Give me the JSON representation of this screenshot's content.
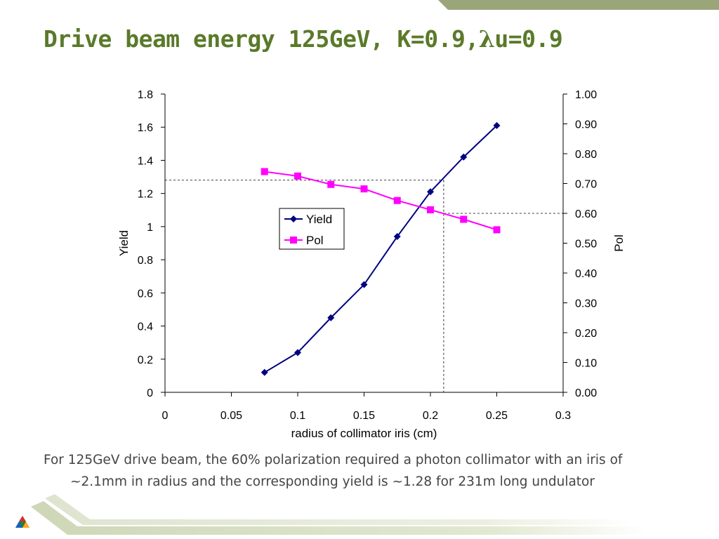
{
  "slide": {
    "title_prefix": "Drive beam energy 125GeV, K=0.9,",
    "title_lambda": "λ",
    "title_suffix": "u=0.9",
    "caption": "For 125GeV drive beam, the 60% polarization required a photon collimator with an iris of ~2.1mm in radius and the corresponding yield is ~1.28 for 231m long undulator",
    "accent_color": "#5a7a2a",
    "band_color": "#9aa67a"
  },
  "chart_data": {
    "type": "line",
    "title": "",
    "xlabel": "radius of collimator iris (cm)",
    "ylabel": "Yield",
    "y2label": "Pol",
    "xlim": [
      0,
      0.3
    ],
    "ylim": [
      0,
      1.8
    ],
    "y2lim": [
      0,
      1.0
    ],
    "x_ticks": [
      "0",
      "0.05",
      "0.1",
      "0.15",
      "0.2",
      "0.25",
      "0.3"
    ],
    "y_ticks": [
      "0",
      "0.2",
      "0.4",
      "0.6",
      "0.8",
      "1",
      "1.2",
      "1.4",
      "1.6",
      "1.8"
    ],
    "y2_ticks": [
      "0.00",
      "0.10",
      "0.20",
      "0.30",
      "0.40",
      "0.50",
      "0.60",
      "0.70",
      "0.80",
      "0.90",
      "1.00"
    ],
    "grid": false,
    "legend_position": "center",
    "series": [
      {
        "name": "Yield",
        "axis": "left",
        "color": "#000080",
        "marker": "diamond",
        "x": [
          0.075,
          0.1,
          0.125,
          0.15,
          0.175,
          0.2,
          0.225,
          0.25
        ],
        "values": [
          0.12,
          0.24,
          0.45,
          0.65,
          0.94,
          1.21,
          1.42,
          1.61
        ]
      },
      {
        "name": "Pol",
        "axis": "right",
        "color": "#ff00ff",
        "marker": "square",
        "x": [
          0.075,
          0.1,
          0.125,
          0.15,
          0.175,
          0.2,
          0.225,
          0.25
        ],
        "values": [
          0.74,
          0.725,
          0.697,
          0.682,
          0.643,
          0.612,
          0.58,
          0.545
        ]
      }
    ],
    "reference_lines": [
      {
        "axis": "left",
        "y": 1.28
      },
      {
        "axis": "right",
        "y": 0.6
      },
      {
        "x": 0.21
      }
    ]
  }
}
